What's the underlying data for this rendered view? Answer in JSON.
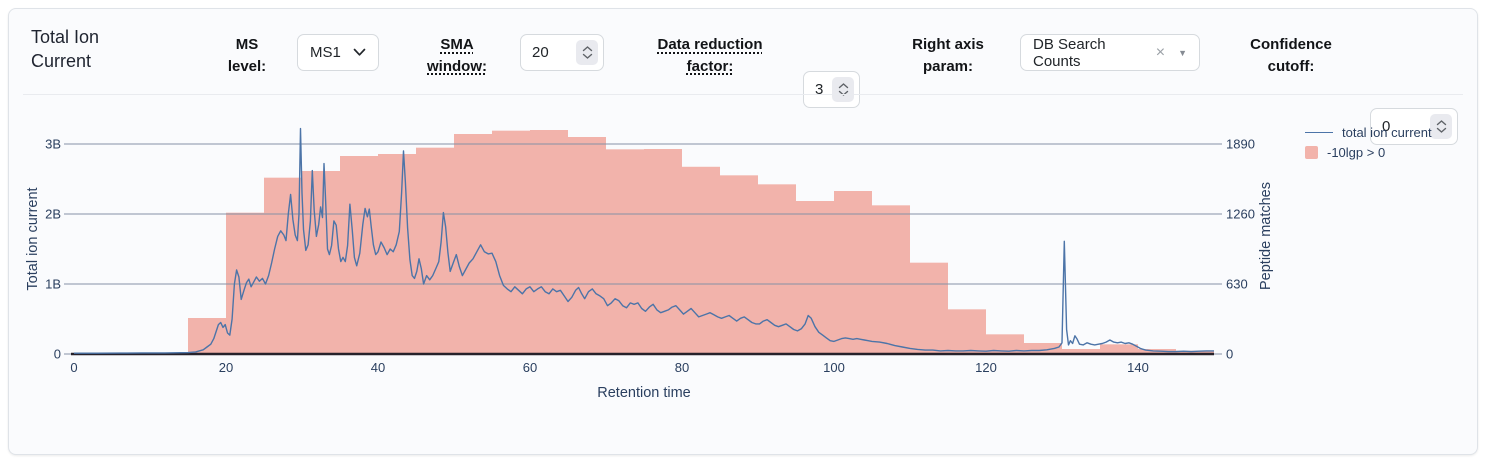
{
  "header": {
    "title": "Total Ion Current",
    "controls": {
      "ms_level": {
        "label": "MS level:",
        "value": "MS1"
      },
      "sma_window": {
        "label": "SMA window:",
        "value": "20"
      },
      "data_reduction": {
        "label": "Data reduction factor:",
        "value": "3"
      },
      "right_axis_param": {
        "label": "Right axis param:",
        "value": "DB Search Counts"
      },
      "confidence_cutoff": {
        "label": "Confidence cutoff:",
        "value": "0"
      }
    },
    "icons": {
      "clear": "×",
      "dropdown": "▼"
    }
  },
  "chart_data": {
    "type": "combo",
    "xlabel": "Retention time",
    "ylabel_left": "Total ion current",
    "ylabel_right": "Peptide matches",
    "xlim": [
      0,
      150
    ],
    "x_ticks": [
      0,
      20,
      40,
      60,
      80,
      100,
      120,
      140
    ],
    "left_ticks": [
      "0",
      "1B",
      "2B",
      "3B"
    ],
    "left_tick_values_billions": [
      0,
      1,
      2,
      3
    ],
    "right_ticks": [
      "0",
      "630",
      "1260",
      "1890"
    ],
    "right_tick_values": [
      0,
      630,
      1260,
      1890
    ],
    "grid": true,
    "legend_position": "top-right",
    "legend_entries": [
      {
        "type": "line",
        "label": "total ion current"
      },
      {
        "type": "box",
        "label": "-10lgp > 0"
      }
    ],
    "colors": {
      "line": "#4c74a8",
      "bar_fill": "#f2b3ab",
      "grid": "#8792a6",
      "axis_line": "#27222b",
      "tick_text": "#2a3f5f"
    },
    "series": [
      {
        "name": "total ion current",
        "type": "line",
        "axis": "left",
        "units": "billions",
        "points": [
          [
            0,
            0.012
          ],
          [
            3,
            0.012
          ],
          [
            6,
            0.013
          ],
          [
            9,
            0.015
          ],
          [
            12,
            0.016
          ],
          [
            14,
            0.018
          ],
          [
            15,
            0.02
          ],
          [
            16,
            0.03
          ],
          [
            17,
            0.06
          ],
          [
            17.5,
            0.1
          ],
          [
            18,
            0.14
          ],
          [
            18.4,
            0.22
          ],
          [
            18.7,
            0.32
          ],
          [
            19,
            0.42
          ],
          [
            19.3,
            0.45
          ],
          [
            19.6,
            0.38
          ],
          [
            19.9,
            0.42
          ],
          [
            20.2,
            0.3
          ],
          [
            20.5,
            0.27
          ],
          [
            20.8,
            0.5
          ],
          [
            21.1,
            1.0
          ],
          [
            21.4,
            1.2
          ],
          [
            21.7,
            1.1
          ],
          [
            22,
            0.78
          ],
          [
            22.4,
            0.92
          ],
          [
            22.7,
            1.02
          ],
          [
            23,
            1.07
          ],
          [
            23.3,
            0.96
          ],
          [
            23.6,
            1.02
          ],
          [
            24,
            1.1
          ],
          [
            24.4,
            1.04
          ],
          [
            24.8,
            1.08
          ],
          [
            25.2,
            1.0
          ],
          [
            25.6,
            1.12
          ],
          [
            26,
            1.3
          ],
          [
            26.4,
            1.5
          ],
          [
            26.8,
            1.68
          ],
          [
            27.2,
            1.76
          ],
          [
            27.6,
            1.7
          ],
          [
            27.9,
            1.62
          ],
          [
            28.2,
            2.0
          ],
          [
            28.5,
            2.28
          ],
          [
            28.8,
            1.92
          ],
          [
            29.1,
            1.7
          ],
          [
            29.4,
            1.62
          ],
          [
            29.6,
            2.0
          ],
          [
            29.8,
            3.22
          ],
          [
            30,
            2.3
          ],
          [
            30.2,
            1.78
          ],
          [
            30.5,
            1.48
          ],
          [
            30.8,
            1.56
          ],
          [
            31.1,
            1.9
          ],
          [
            31.35,
            2.62
          ],
          [
            31.6,
            2.05
          ],
          [
            31.9,
            1.68
          ],
          [
            32.2,
            1.85
          ],
          [
            32.45,
            2.1
          ],
          [
            32.7,
            1.95
          ],
          [
            32.9,
            2.72
          ],
          [
            33.1,
            2.2
          ],
          [
            33.35,
            1.5
          ],
          [
            33.6,
            1.42
          ],
          [
            33.9,
            1.55
          ],
          [
            34.2,
            1.9
          ],
          [
            34.5,
            1.84
          ],
          [
            34.8,
            1.5
          ],
          [
            35.1,
            1.32
          ],
          [
            35.4,
            1.38
          ],
          [
            35.7,
            1.32
          ],
          [
            36,
            1.55
          ],
          [
            36.3,
            2.14
          ],
          [
            36.6,
            1.78
          ],
          [
            36.9,
            1.38
          ],
          [
            37.2,
            1.26
          ],
          [
            37.6,
            1.44
          ],
          [
            38,
            1.85
          ],
          [
            38.3,
            2.08
          ],
          [
            38.6,
            1.96
          ],
          [
            38.85,
            2.07
          ],
          [
            39.1,
            1.82
          ],
          [
            39.4,
            1.56
          ],
          [
            39.7,
            1.42
          ],
          [
            40,
            1.46
          ],
          [
            40.4,
            1.6
          ],
          [
            40.8,
            1.52
          ],
          [
            41.2,
            1.42
          ],
          [
            41.6,
            1.5
          ],
          [
            42,
            1.46
          ],
          [
            42.4,
            1.56
          ],
          [
            42.8,
            1.75
          ],
          [
            43.1,
            2.3
          ],
          [
            43.35,
            2.9
          ],
          [
            43.6,
            2.45
          ],
          [
            43.9,
            1.8
          ],
          [
            44.2,
            1.35
          ],
          [
            44.5,
            1.12
          ],
          [
            44.8,
            1.08
          ],
          [
            45.1,
            1.18
          ],
          [
            45.4,
            1.36
          ],
          [
            45.7,
            1.22
          ],
          [
            46,
            1.0
          ],
          [
            46.4,
            1.12
          ],
          [
            46.8,
            1.06
          ],
          [
            47.2,
            1.12
          ],
          [
            47.6,
            1.22
          ],
          [
            48,
            1.32
          ],
          [
            48.3,
            1.6
          ],
          [
            48.6,
            2.02
          ],
          [
            48.9,
            1.82
          ],
          [
            49.2,
            1.45
          ],
          [
            49.5,
            1.18
          ],
          [
            49.9,
            1.3
          ],
          [
            50.3,
            1.42
          ],
          [
            50.7,
            1.25
          ],
          [
            51.1,
            1.12
          ],
          [
            51.5,
            1.2
          ],
          [
            52,
            1.3
          ],
          [
            52.5,
            1.36
          ],
          [
            53,
            1.46
          ],
          [
            53.5,
            1.56
          ],
          [
            54,
            1.46
          ],
          [
            54.5,
            1.43
          ],
          [
            55,
            1.44
          ],
          [
            55.5,
            1.32
          ],
          [
            56,
            1.12
          ],
          [
            56.5,
            0.98
          ],
          [
            57,
            0.93
          ],
          [
            57.5,
            0.89
          ],
          [
            58,
            0.96
          ],
          [
            58.5,
            0.91
          ],
          [
            59,
            0.86
          ],
          [
            59.5,
            0.93
          ],
          [
            60,
            0.96
          ],
          [
            60.5,
            0.89
          ],
          [
            61,
            0.93
          ],
          [
            61.5,
            0.96
          ],
          [
            62,
            0.89
          ],
          [
            62.5,
            0.86
          ],
          [
            63,
            0.93
          ],
          [
            63.5,
            0.89
          ],
          [
            64,
            0.91
          ],
          [
            64.5,
            0.83
          ],
          [
            65,
            0.75
          ],
          [
            65.5,
            0.81
          ],
          [
            66,
            0.91
          ],
          [
            66.4,
            0.95
          ],
          [
            66.8,
            0.86
          ],
          [
            67.2,
            0.79
          ],
          [
            67.7,
            0.89
          ],
          [
            68.2,
            0.93
          ],
          [
            68.7,
            0.86
          ],
          [
            69.2,
            0.83
          ],
          [
            69.7,
            0.79
          ],
          [
            70.2,
            0.69
          ],
          [
            70.7,
            0.73
          ],
          [
            71.2,
            0.79
          ],
          [
            71.7,
            0.76
          ],
          [
            72.2,
            0.69
          ],
          [
            72.7,
            0.66
          ],
          [
            73.2,
            0.73
          ],
          [
            73.7,
            0.71
          ],
          [
            74.2,
            0.73
          ],
          [
            74.7,
            0.65
          ],
          [
            75.2,
            0.61
          ],
          [
            75.7,
            0.67
          ],
          [
            76.2,
            0.71
          ],
          [
            76.7,
            0.63
          ],
          [
            77.2,
            0.59
          ],
          [
            77.7,
            0.61
          ],
          [
            78.2,
            0.63
          ],
          [
            78.7,
            0.67
          ],
          [
            79.2,
            0.69
          ],
          [
            79.7,
            0.63
          ],
          [
            80.2,
            0.57
          ],
          [
            80.7,
            0.61
          ],
          [
            81.2,
            0.65
          ],
          [
            81.7,
            0.59
          ],
          [
            82.2,
            0.53
          ],
          [
            82.7,
            0.55
          ],
          [
            83.2,
            0.57
          ],
          [
            83.7,
            0.59
          ],
          [
            84.2,
            0.56
          ],
          [
            84.7,
            0.53
          ],
          [
            85.2,
            0.51
          ],
          [
            85.7,
            0.53
          ],
          [
            86.2,
            0.55
          ],
          [
            86.7,
            0.51
          ],
          [
            87.2,
            0.47
          ],
          [
            87.7,
            0.51
          ],
          [
            88.2,
            0.53
          ],
          [
            88.7,
            0.49
          ],
          [
            89.2,
            0.45
          ],
          [
            89.7,
            0.43
          ],
          [
            90.2,
            0.43
          ],
          [
            90.7,
            0.47
          ],
          [
            91.2,
            0.49
          ],
          [
            91.7,
            0.45
          ],
          [
            92.2,
            0.41
          ],
          [
            92.7,
            0.39
          ],
          [
            93.2,
            0.41
          ],
          [
            93.7,
            0.43
          ],
          [
            94.2,
            0.39
          ],
          [
            94.7,
            0.35
          ],
          [
            95.2,
            0.33
          ],
          [
            95.7,
            0.36
          ],
          [
            96.2,
            0.43
          ],
          [
            96.6,
            0.55
          ],
          [
            97,
            0.51
          ],
          [
            97.5,
            0.39
          ],
          [
            98,
            0.31
          ],
          [
            98.5,
            0.27
          ],
          [
            99,
            0.23
          ],
          [
            99.5,
            0.19
          ],
          [
            100,
            0.18
          ],
          [
            100.5,
            0.2
          ],
          [
            101,
            0.22
          ],
          [
            101.5,
            0.23
          ],
          [
            102,
            0.22
          ],
          [
            102.5,
            0.21
          ],
          [
            103,
            0.22
          ],
          [
            103.5,
            0.21
          ],
          [
            104,
            0.2
          ],
          [
            104.5,
            0.19
          ],
          [
            105,
            0.18
          ],
          [
            106,
            0.17
          ],
          [
            107,
            0.15
          ],
          [
            108,
            0.12
          ],
          [
            109,
            0.1
          ],
          [
            110,
            0.08
          ],
          [
            111,
            0.065
          ],
          [
            112,
            0.055
          ],
          [
            113,
            0.055
          ],
          [
            114,
            0.045
          ],
          [
            115,
            0.05
          ],
          [
            116,
            0.045
          ],
          [
            117,
            0.045
          ],
          [
            118,
            0.05
          ],
          [
            119,
            0.045
          ],
          [
            120,
            0.04
          ],
          [
            121,
            0.05
          ],
          [
            122,
            0.045
          ],
          [
            123,
            0.04
          ],
          [
            124,
            0.05
          ],
          [
            125,
            0.045
          ],
          [
            126,
            0.05
          ],
          [
            127,
            0.05
          ],
          [
            128,
            0.06
          ],
          [
            129,
            0.08
          ],
          [
            129.6,
            0.1
          ],
          [
            130,
            0.16
          ],
          [
            130.3,
            1.61
          ],
          [
            130.6,
            0.35
          ],
          [
            130.85,
            0.13
          ],
          [
            131.1,
            0.19
          ],
          [
            131.4,
            0.15
          ],
          [
            131.7,
            0.26
          ],
          [
            132,
            0.21
          ],
          [
            132.3,
            0.14
          ],
          [
            132.8,
            0.13
          ],
          [
            133.3,
            0.16
          ],
          [
            133.8,
            0.14
          ],
          [
            134.3,
            0.13
          ],
          [
            134.8,
            0.14
          ],
          [
            135.3,
            0.15
          ],
          [
            135.8,
            0.17
          ],
          [
            136.3,
            0.2
          ],
          [
            136.8,
            0.17
          ],
          [
            137.3,
            0.16
          ],
          [
            137.8,
            0.17
          ],
          [
            138.3,
            0.15
          ],
          [
            138.8,
            0.16
          ],
          [
            139.3,
            0.14
          ],
          [
            139.8,
            0.11
          ],
          [
            140.3,
            0.08
          ],
          [
            141,
            0.055
          ],
          [
            142,
            0.045
          ],
          [
            143,
            0.04
          ],
          [
            144,
            0.035
          ],
          [
            145,
            0.035
          ],
          [
            146,
            0.04
          ],
          [
            147,
            0.035
          ],
          [
            148,
            0.04
          ],
          [
            149,
            0.045
          ],
          [
            150,
            0.045
          ]
        ]
      },
      {
        "name": "-10lgp > 0",
        "type": "bar",
        "axis": "right",
        "units": "peptide matches",
        "bin_width": 5,
        "bin_starts": [
          15,
          20,
          25,
          30,
          35,
          40,
          45,
          50,
          55,
          60,
          65,
          70,
          75,
          80,
          85,
          90,
          95,
          100,
          105,
          110,
          115,
          120,
          125,
          130,
          135,
          140,
          145
        ],
        "counts": [
          324,
          1272,
          1587,
          1647,
          1782,
          1800,
          1857,
          1980,
          2010,
          2016,
          1953,
          1842,
          1845,
          1685,
          1608,
          1527,
          1377,
          1467,
          1338,
          822,
          402,
          177,
          99,
          45,
          87,
          45,
          30
        ]
      }
    ]
  }
}
